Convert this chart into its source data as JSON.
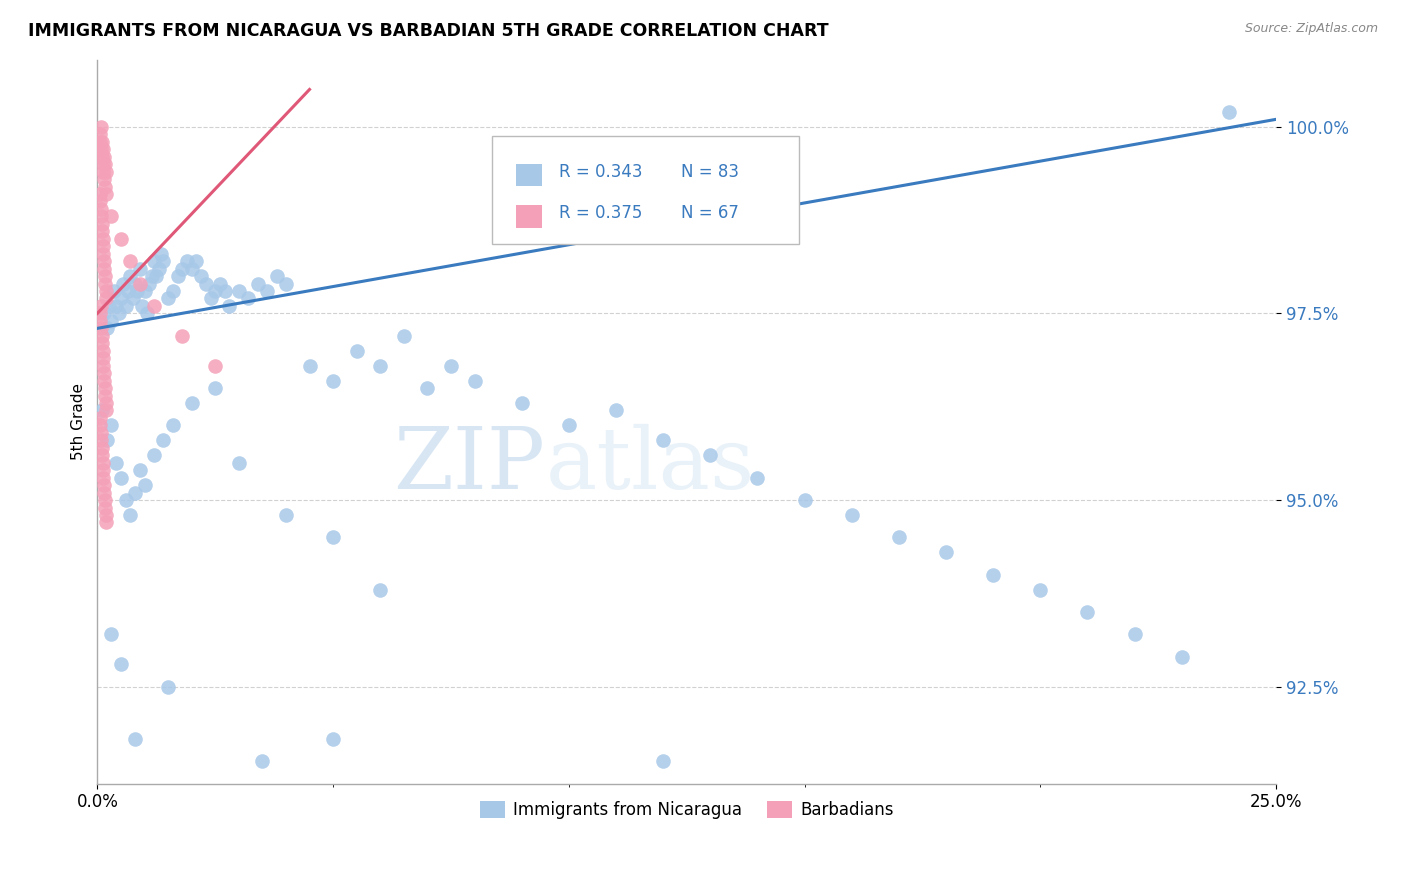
{
  "title": "IMMIGRANTS FROM NICARAGUA VS BARBADIAN 5TH GRADE CORRELATION CHART",
  "source": "Source: ZipAtlas.com",
  "ylabel": "5th Grade",
  "yticks": [
    92.5,
    95.0,
    97.5,
    100.0
  ],
  "ytick_labels": [
    "92.5%",
    "95.0%",
    "97.5%",
    "100.0%"
  ],
  "xmin": 0.0,
  "xmax": 25.0,
  "ymin": 91.2,
  "ymax": 100.9,
  "legend_blue_label": "Immigrants from Nicaragua",
  "legend_pink_label": "Barbadians",
  "blue_color": "#a8c8e8",
  "pink_color": "#f4a0b8",
  "trendline_blue_color": "#3a7abf",
  "trendline_pink_color": "#e05878",
  "watermark_zip": "ZIP",
  "watermark_atlas": "atlas",
  "blue_trendline_x0": 0.0,
  "blue_trendline_y0": 97.3,
  "blue_trendline_x1": 25.0,
  "blue_trendline_y1": 100.1,
  "pink_trendline_x0": 0.0,
  "pink_trendline_y0": 97.5,
  "pink_trendline_x1": 4.5,
  "pink_trendline_y1": 100.5,
  "blue_scatter": [
    [
      0.15,
      97.5
    ],
    [
      0.2,
      97.3
    ],
    [
      0.25,
      97.6
    ],
    [
      0.3,
      97.4
    ],
    [
      0.35,
      97.8
    ],
    [
      0.4,
      97.6
    ],
    [
      0.45,
      97.5
    ],
    [
      0.5,
      97.7
    ],
    [
      0.55,
      97.9
    ],
    [
      0.6,
      97.6
    ],
    [
      0.65,
      97.8
    ],
    [
      0.7,
      98.0
    ],
    [
      0.75,
      97.7
    ],
    [
      0.8,
      97.9
    ],
    [
      0.85,
      97.8
    ],
    [
      0.9,
      98.1
    ],
    [
      0.95,
      97.6
    ],
    [
      1.0,
      97.8
    ],
    [
      1.05,
      97.5
    ],
    [
      1.1,
      97.9
    ],
    [
      1.15,
      98.0
    ],
    [
      1.2,
      98.2
    ],
    [
      1.25,
      98.0
    ],
    [
      1.3,
      98.1
    ],
    [
      1.35,
      98.3
    ],
    [
      1.4,
      98.2
    ],
    [
      1.5,
      97.7
    ],
    [
      1.6,
      97.8
    ],
    [
      1.7,
      98.0
    ],
    [
      1.8,
      98.1
    ],
    [
      1.9,
      98.2
    ],
    [
      2.0,
      98.1
    ],
    [
      2.1,
      98.2
    ],
    [
      2.2,
      98.0
    ],
    [
      2.3,
      97.9
    ],
    [
      2.4,
      97.7
    ],
    [
      2.5,
      97.8
    ],
    [
      2.6,
      97.9
    ],
    [
      2.7,
      97.8
    ],
    [
      2.8,
      97.6
    ],
    [
      3.0,
      97.8
    ],
    [
      3.2,
      97.7
    ],
    [
      3.4,
      97.9
    ],
    [
      3.6,
      97.8
    ],
    [
      3.8,
      98.0
    ],
    [
      4.0,
      97.9
    ],
    [
      4.5,
      96.8
    ],
    [
      5.0,
      96.6
    ],
    [
      5.5,
      97.0
    ],
    [
      6.0,
      96.8
    ],
    [
      6.5,
      97.2
    ],
    [
      7.0,
      96.5
    ],
    [
      7.5,
      96.8
    ],
    [
      8.0,
      96.6
    ],
    [
      9.0,
      96.3
    ],
    [
      10.0,
      96.0
    ],
    [
      11.0,
      96.2
    ],
    [
      12.0,
      95.8
    ],
    [
      13.0,
      95.6
    ],
    [
      14.0,
      95.3
    ],
    [
      15.0,
      95.0
    ],
    [
      16.0,
      94.8
    ],
    [
      17.0,
      94.5
    ],
    [
      18.0,
      94.3
    ],
    [
      19.0,
      94.0
    ],
    [
      20.0,
      93.8
    ],
    [
      21.0,
      93.5
    ],
    [
      22.0,
      93.2
    ],
    [
      23.0,
      92.9
    ],
    [
      24.0,
      100.2
    ],
    [
      0.1,
      96.2
    ],
    [
      0.2,
      95.8
    ],
    [
      0.3,
      96.0
    ],
    [
      0.4,
      95.5
    ],
    [
      0.5,
      95.3
    ],
    [
      0.6,
      95.0
    ],
    [
      0.7,
      94.8
    ],
    [
      0.8,
      95.1
    ],
    [
      0.9,
      95.4
    ],
    [
      1.0,
      95.2
    ],
    [
      1.2,
      95.6
    ],
    [
      1.4,
      95.8
    ],
    [
      1.6,
      96.0
    ],
    [
      2.0,
      96.3
    ],
    [
      2.5,
      96.5
    ],
    [
      3.0,
      95.5
    ],
    [
      4.0,
      94.8
    ],
    [
      5.0,
      94.5
    ],
    [
      6.0,
      93.8
    ],
    [
      0.3,
      93.2
    ],
    [
      0.5,
      92.8
    ],
    [
      0.8,
      91.8
    ],
    [
      1.5,
      92.5
    ],
    [
      3.5,
      91.5
    ],
    [
      5.0,
      91.8
    ],
    [
      12.0,
      91.5
    ]
  ],
  "pink_scatter": [
    [
      0.05,
      99.8
    ],
    [
      0.06,
      99.9
    ],
    [
      0.07,
      99.7
    ],
    [
      0.08,
      100.0
    ],
    [
      0.09,
      99.6
    ],
    [
      0.1,
      99.8
    ],
    [
      0.11,
      99.5
    ],
    [
      0.12,
      99.7
    ],
    [
      0.13,
      99.4
    ],
    [
      0.14,
      99.6
    ],
    [
      0.15,
      99.3
    ],
    [
      0.16,
      99.5
    ],
    [
      0.17,
      99.2
    ],
    [
      0.18,
      99.4
    ],
    [
      0.19,
      99.1
    ],
    [
      0.05,
      99.1
    ],
    [
      0.06,
      99.0
    ],
    [
      0.07,
      98.9
    ],
    [
      0.08,
      98.8
    ],
    [
      0.09,
      98.7
    ],
    [
      0.1,
      98.6
    ],
    [
      0.11,
      98.5
    ],
    [
      0.12,
      98.4
    ],
    [
      0.13,
      98.3
    ],
    [
      0.14,
      98.2
    ],
    [
      0.15,
      98.1
    ],
    [
      0.16,
      98.0
    ],
    [
      0.17,
      97.9
    ],
    [
      0.18,
      97.8
    ],
    [
      0.19,
      97.7
    ],
    [
      0.05,
      97.5
    ],
    [
      0.06,
      97.4
    ],
    [
      0.07,
      97.3
    ],
    [
      0.08,
      97.6
    ],
    [
      0.09,
      97.2
    ],
    [
      0.1,
      97.1
    ],
    [
      0.11,
      97.0
    ],
    [
      0.12,
      96.9
    ],
    [
      0.13,
      96.8
    ],
    [
      0.14,
      96.7
    ],
    [
      0.15,
      96.6
    ],
    [
      0.16,
      96.5
    ],
    [
      0.17,
      96.4
    ],
    [
      0.18,
      96.3
    ],
    [
      0.19,
      96.2
    ],
    [
      0.05,
      96.1
    ],
    [
      0.06,
      96.0
    ],
    [
      0.07,
      95.9
    ],
    [
      0.08,
      95.8
    ],
    [
      0.09,
      95.7
    ],
    [
      0.1,
      95.6
    ],
    [
      0.11,
      95.5
    ],
    [
      0.12,
      95.4
    ],
    [
      0.13,
      95.3
    ],
    [
      0.14,
      95.2
    ],
    [
      0.15,
      95.1
    ],
    [
      0.16,
      95.0
    ],
    [
      0.17,
      94.9
    ],
    [
      0.18,
      94.8
    ],
    [
      0.19,
      94.7
    ],
    [
      0.3,
      98.8
    ],
    [
      0.5,
      98.5
    ],
    [
      0.7,
      98.2
    ],
    [
      0.9,
      97.9
    ],
    [
      1.2,
      97.6
    ],
    [
      1.8,
      97.2
    ],
    [
      2.5,
      96.8
    ]
  ]
}
